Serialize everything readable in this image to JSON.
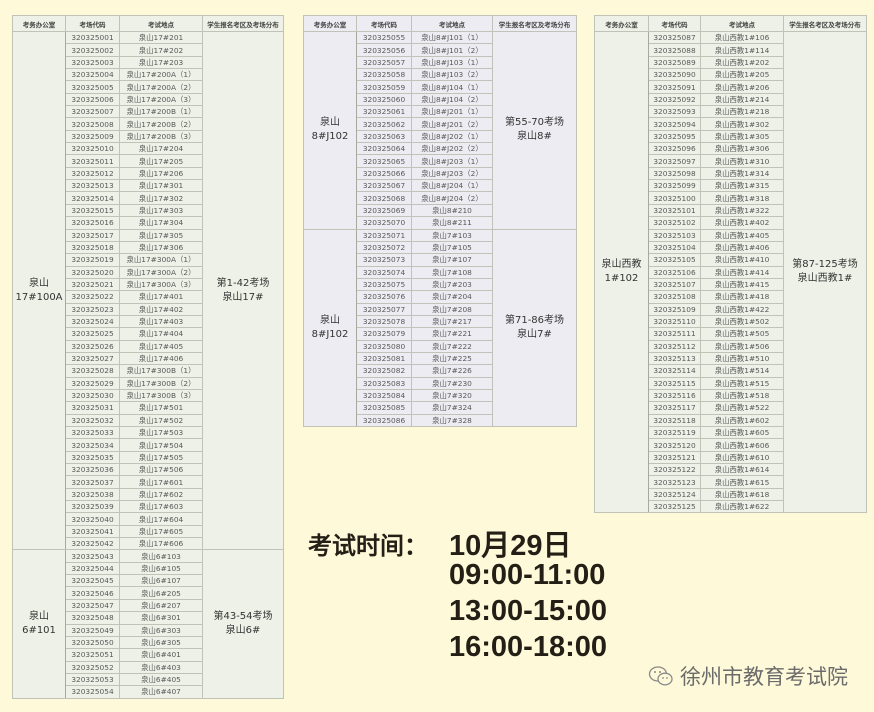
{
  "headers": [
    "考务办公室",
    "考场代码",
    "考试地点",
    "学生报名考区及考场分布"
  ],
  "tables": [
    {
      "theme": "#eef1e7",
      "groups": [
        {
          "office": [
            "泉山",
            "17#100A"
          ],
          "dist": [
            "第1-42考场",
            "泉山17#"
          ],
          "rows": [
            [
              "320325001",
              "泉山17#201"
            ],
            [
              "320325002",
              "泉山17#202"
            ],
            [
              "320325003",
              "泉山17#203"
            ],
            [
              "320325004",
              "泉山17#200A（1）"
            ],
            [
              "320325005",
              "泉山17#200A（2）"
            ],
            [
              "320325006",
              "泉山17#200A（3）"
            ],
            [
              "320325007",
              "泉山17#200B（1）"
            ],
            [
              "320325008",
              "泉山17#200B（2）"
            ],
            [
              "320325009",
              "泉山17#200B（3）"
            ],
            [
              "320325010",
              "泉山17#204"
            ],
            [
              "320325011",
              "泉山17#205"
            ],
            [
              "320325012",
              "泉山17#206"
            ],
            [
              "320325013",
              "泉山17#301"
            ],
            [
              "320325014",
              "泉山17#302"
            ],
            [
              "320325015",
              "泉山17#303"
            ],
            [
              "320325016",
              "泉山17#304"
            ],
            [
              "320325017",
              "泉山17#305"
            ],
            [
              "320325018",
              "泉山17#306"
            ],
            [
              "320325019",
              "泉山17#300A（1）"
            ],
            [
              "320325020",
              "泉山17#300A（2）"
            ],
            [
              "320325021",
              "泉山17#300A（3）"
            ],
            [
              "320325022",
              "泉山17#401"
            ],
            [
              "320325023",
              "泉山17#402"
            ],
            [
              "320325024",
              "泉山17#403"
            ],
            [
              "320325025",
              "泉山17#404"
            ],
            [
              "320325026",
              "泉山17#405"
            ],
            [
              "320325027",
              "泉山17#406"
            ],
            [
              "320325028",
              "泉山17#300B（1）"
            ],
            [
              "320325029",
              "泉山17#300B（2）"
            ],
            [
              "320325030",
              "泉山17#300B（3）"
            ],
            [
              "320325031",
              "泉山17#501"
            ],
            [
              "320325032",
              "泉山17#502"
            ],
            [
              "320325033",
              "泉山17#503"
            ],
            [
              "320325034",
              "泉山17#504"
            ],
            [
              "320325035",
              "泉山17#505"
            ],
            [
              "320325036",
              "泉山17#506"
            ],
            [
              "320325037",
              "泉山17#601"
            ],
            [
              "320325038",
              "泉山17#602"
            ],
            [
              "320325039",
              "泉山17#603"
            ],
            [
              "320325040",
              "泉山17#604"
            ],
            [
              "320325041",
              "泉山17#605"
            ],
            [
              "320325042",
              "泉山17#606"
            ]
          ]
        },
        {
          "office": [
            "泉山",
            "6#101"
          ],
          "dist": [
            "第43-54考场",
            "泉山6#"
          ],
          "rows": [
            [
              "320325043",
              "泉山6#103"
            ],
            [
              "320325044",
              "泉山6#105"
            ],
            [
              "320325045",
              "泉山6#107"
            ],
            [
              "320325046",
              "泉山6#205"
            ],
            [
              "320325047",
              "泉山6#207"
            ],
            [
              "320325048",
              "泉山6#301"
            ],
            [
              "320325049",
              "泉山6#303"
            ],
            [
              "320325050",
              "泉山6#305"
            ],
            [
              "320325051",
              "泉山6#401"
            ],
            [
              "320325052",
              "泉山6#403"
            ],
            [
              "320325053",
              "泉山6#405"
            ],
            [
              "320325054",
              "泉山6#407"
            ]
          ]
        }
      ]
    },
    {
      "theme": "#edecf3",
      "groups": [
        {
          "office": [
            "泉山",
            "8#J102"
          ],
          "dist": [
            "第55-70考场",
            "泉山8#"
          ],
          "rows": [
            [
              "320325055",
              "泉山8#J101（1）"
            ],
            [
              "320325056",
              "泉山8#J101（2）"
            ],
            [
              "320325057",
              "泉山8#J103（1）"
            ],
            [
              "320325058",
              "泉山8#J103（2）"
            ],
            [
              "320325059",
              "泉山8#J104（1）"
            ],
            [
              "320325060",
              "泉山8#J104（2）"
            ],
            [
              "320325061",
              "泉山8#J201（1）"
            ],
            [
              "320325062",
              "泉山8#J201（2）"
            ],
            [
              "320325063",
              "泉山8#J202（1）"
            ],
            [
              "320325064",
              "泉山8#J202（2）"
            ],
            [
              "320325065",
              "泉山8#J203（1）"
            ],
            [
              "320325066",
              "泉山8#J203（2）"
            ],
            [
              "320325067",
              "泉山8#J204（1）"
            ],
            [
              "320325068",
              "泉山8#J204（2）"
            ],
            [
              "320325069",
              "泉山8#210"
            ],
            [
              "320325070",
              "泉山8#211"
            ]
          ]
        },
        {
          "office": [
            "泉山",
            "8#J102"
          ],
          "dist": [
            "第71-86考场",
            "泉山7#"
          ],
          "rows": [
            [
              "320325071",
              "泉山7#103"
            ],
            [
              "320325072",
              "泉山7#105"
            ],
            [
              "320325073",
              "泉山7#107"
            ],
            [
              "320325074",
              "泉山7#108"
            ],
            [
              "320325075",
              "泉山7#203"
            ],
            [
              "320325076",
              "泉山7#204"
            ],
            [
              "320325077",
              "泉山7#208"
            ],
            [
              "320325078",
              "泉山7#217"
            ],
            [
              "320325079",
              "泉山7#221"
            ],
            [
              "320325080",
              "泉山7#222"
            ],
            [
              "320325081",
              "泉山7#225"
            ],
            [
              "320325082",
              "泉山7#226"
            ],
            [
              "320325083",
              "泉山7#230"
            ],
            [
              "320325084",
              "泉山7#320"
            ],
            [
              "320325085",
              "泉山7#324"
            ],
            [
              "320325086",
              "泉山7#328"
            ]
          ]
        }
      ]
    },
    {
      "theme": "#eef1e7",
      "groups": [
        {
          "office": [
            "泉山西教",
            "1#102"
          ],
          "dist": [
            "第87-125考场",
            "泉山西教1#"
          ],
          "rows": [
            [
              "320325087",
              "泉山西教1#106"
            ],
            [
              "320325088",
              "泉山西教1#114"
            ],
            [
              "320325089",
              "泉山西教1#202"
            ],
            [
              "320325090",
              "泉山西教1#205"
            ],
            [
              "320325091",
              "泉山西教1#206"
            ],
            [
              "320325092",
              "泉山西教1#214"
            ],
            [
              "320325093",
              "泉山西教1#218"
            ],
            [
              "320325094",
              "泉山西教1#302"
            ],
            [
              "320325095",
              "泉山西教1#305"
            ],
            [
              "320325096",
              "泉山西教1#306"
            ],
            [
              "320325097",
              "泉山西教1#310"
            ],
            [
              "320325098",
              "泉山西教1#314"
            ],
            [
              "320325099",
              "泉山西教1#315"
            ],
            [
              "320325100",
              "泉山西教1#318"
            ],
            [
              "320325101",
              "泉山西教1#322"
            ],
            [
              "320325102",
              "泉山西教1#402"
            ],
            [
              "320325103",
              "泉山西教1#405"
            ],
            [
              "320325104",
              "泉山西教1#406"
            ],
            [
              "320325105",
              "泉山西教1#410"
            ],
            [
              "320325106",
              "泉山西教1#414"
            ],
            [
              "320325107",
              "泉山西教1#415"
            ],
            [
              "320325108",
              "泉山西教1#418"
            ],
            [
              "320325109",
              "泉山西教1#422"
            ],
            [
              "320325110",
              "泉山西教1#502"
            ],
            [
              "320325111",
              "泉山西教1#505"
            ],
            [
              "320325112",
              "泉山西教1#506"
            ],
            [
              "320325113",
              "泉山西教1#510"
            ],
            [
              "320325114",
              "泉山西教1#514"
            ],
            [
              "320325115",
              "泉山西教1#515"
            ],
            [
              "320325116",
              "泉山西教1#518"
            ],
            [
              "320325117",
              "泉山西教1#522"
            ],
            [
              "320325118",
              "泉山西教1#602"
            ],
            [
              "320325119",
              "泉山西教1#605"
            ],
            [
              "320325120",
              "泉山西教1#606"
            ],
            [
              "320325121",
              "泉山西教1#610"
            ],
            [
              "320325122",
              "泉山西教1#614"
            ],
            [
              "320325123",
              "泉山西教1#615"
            ],
            [
              "320325124",
              "泉山西教1#618"
            ],
            [
              "320325125",
              "泉山西教1#622"
            ]
          ]
        }
      ]
    }
  ],
  "exam_time": {
    "label": "考试时间：",
    "date": "10月29日",
    "slots": [
      "09:00-11:00",
      "13:00-15:00",
      "16:00-18:00"
    ]
  },
  "watermark": {
    "icon": "wechat-icon",
    "text": "徐州市教育考试院"
  }
}
